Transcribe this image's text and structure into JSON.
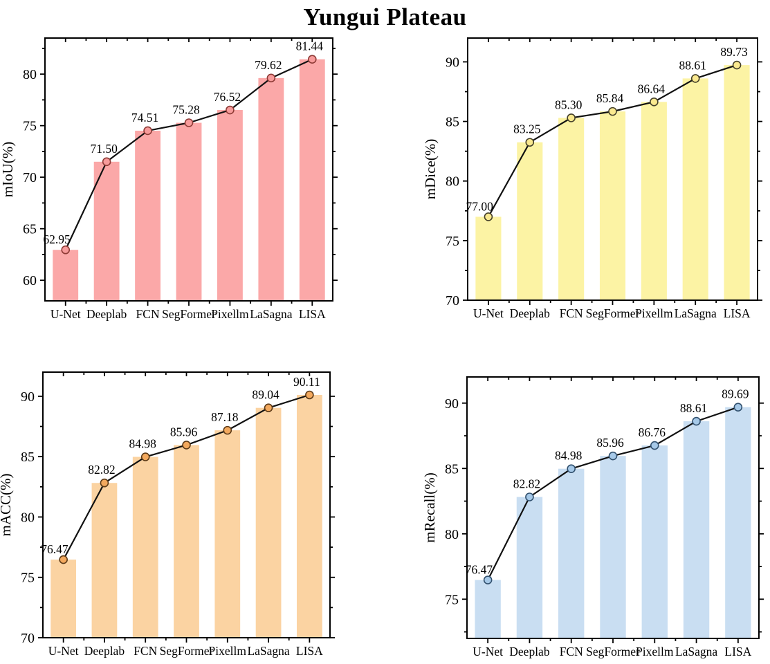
{
  "title": "Yungui Plateau",
  "chart_data": [
    {
      "type": "bar",
      "overlay": "line",
      "name": "chart-miou",
      "ylabel": "mIoU(%)",
      "categories": [
        "U-Net",
        "Deeplab",
        "FCN",
        "SegFormer",
        "Pixellm",
        "LaSagna",
        "LISA"
      ],
      "values": [
        62.95,
        71.5,
        74.51,
        75.28,
        76.52,
        79.62,
        81.44
      ],
      "value_labels": [
        "62.95",
        "71.50",
        "74.51",
        "75.28",
        "76.52",
        "79.62",
        "81.44"
      ],
      "ylim": [
        58,
        83.5
      ],
      "yticks": [
        60,
        65,
        70,
        75,
        80
      ],
      "grid": false,
      "bar_color": "#FBA8A8",
      "marker_fill": "#F79B9B",
      "marker_stroke": "#8E3B36",
      "line_color": "#111111"
    },
    {
      "type": "bar",
      "overlay": "line",
      "name": "chart-mdice",
      "ylabel": "mDice(%)",
      "categories": [
        "U-Net",
        "Deeplab",
        "FCN",
        "SegFormer",
        "Pixellm",
        "LaSagna",
        "LISA"
      ],
      "values": [
        77.0,
        83.25,
        85.3,
        85.84,
        86.64,
        88.61,
        89.73
      ],
      "value_labels": [
        "77.00",
        "83.25",
        "85.30",
        "85.84",
        "86.64",
        "88.61",
        "89.73"
      ],
      "ylim": [
        70,
        92
      ],
      "yticks": [
        70,
        75,
        80,
        85,
        90
      ],
      "grid": false,
      "bar_color": "#FCF3A4",
      "marker_fill": "#FAE98F",
      "marker_stroke": "#45402A",
      "line_color": "#111111"
    },
    {
      "type": "bar",
      "overlay": "line",
      "name": "chart-macc",
      "ylabel": "mACC(%)",
      "categories": [
        "U-Net",
        "Deeplab",
        "FCN",
        "SegFormer",
        "Pixellm",
        "LaSagna",
        "LISA"
      ],
      "values": [
        76.47,
        82.82,
        84.98,
        85.96,
        87.18,
        89.04,
        90.11
      ],
      "value_labels": [
        "76.47",
        "82.82",
        "84.98",
        "85.96",
        "87.18",
        "89.04",
        "90.11"
      ],
      "ylim": [
        70,
        92
      ],
      "yticks": [
        70,
        75,
        80,
        85,
        90
      ],
      "grid": false,
      "bar_color": "#FBD3A2",
      "marker_fill": "#F3A95E",
      "marker_stroke": "#5C3A17",
      "line_color": "#111111"
    },
    {
      "type": "bar",
      "overlay": "line",
      "name": "chart-mrecall",
      "ylabel": "mRecall(%)",
      "categories": [
        "U-Net",
        "Deeplab",
        "FCN",
        "SegFormer",
        "Pixellm",
        "LaSagna",
        "LISA"
      ],
      "values": [
        76.47,
        82.82,
        84.98,
        85.96,
        86.76,
        88.61,
        89.69
      ],
      "value_labels": [
        "76.47",
        "82.82",
        "84.98",
        "85.96",
        "86.76",
        "88.61",
        "89.69"
      ],
      "ylim": [
        72,
        92
      ],
      "yticks": [
        75,
        80,
        85,
        90
      ],
      "grid": false,
      "bar_color": "#C9DEF2",
      "marker_fill": "#A6C9E8",
      "marker_stroke": "#31506E",
      "line_color": "#111111"
    }
  ]
}
